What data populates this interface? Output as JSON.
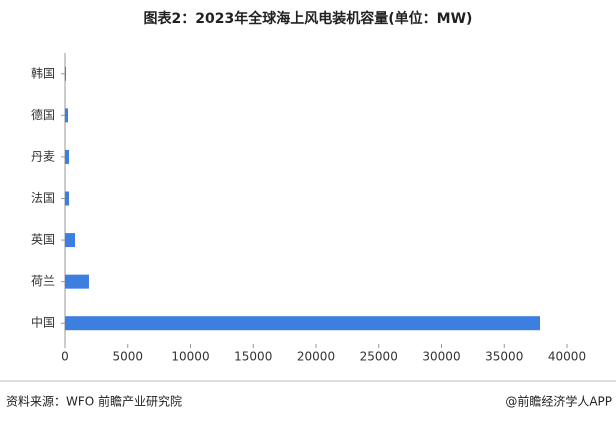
{
  "chart_data": {
    "type": "bar",
    "orientation": "horizontal",
    "title": "图表2：2023年全球海上风电装机容量(单位：MW)",
    "categories": [
      "韩国",
      "德国",
      "丹麦",
      "法国",
      "英国",
      "荷兰",
      "中国"
    ],
    "values": [
      80,
      240,
      320,
      320,
      800,
      1910,
      37850
    ],
    "color": "#3c7fe0",
    "xlim": [
      0,
      40000
    ],
    "xticks": [
      0,
      5000,
      10000,
      15000,
      20000,
      25000,
      30000,
      35000,
      40000
    ]
  },
  "footer": {
    "source": "资料来源：WFO 前瞻产业研究院",
    "credit": "@前瞻经济学人APP"
  }
}
